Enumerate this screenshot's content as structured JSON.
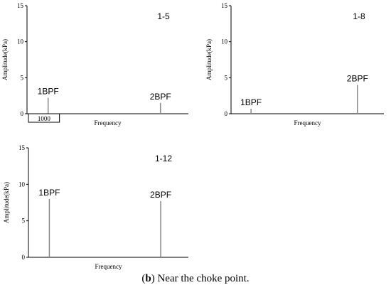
{
  "chart_data": [
    {
      "type": "spike",
      "panel_label": "1-5",
      "x_label": "Frequency",
      "y_label": "Amplitude(kPa)",
      "xlim": [
        0,
        5200
      ],
      "ylim": [
        0,
        15
      ],
      "yticks": [
        0,
        5,
        10,
        15
      ],
      "color": "#888888",
      "labels": [
        "1BPF",
        "2BPF"
      ],
      "x": [
        680,
        4300
      ],
      "values": [
        2.2,
        1.5
      ],
      "scale_bar": 1000
    },
    {
      "type": "spike",
      "panel_label": "1-8",
      "x_label": "Frequency",
      "y_label": "Amplitude(kPa)",
      "xlim": [
        0,
        5200
      ],
      "ylim": [
        0,
        15
      ],
      "yticks": [
        0,
        5,
        10,
        15
      ],
      "color": "#888888",
      "labels": [
        "1BPF",
        "2BPF"
      ],
      "x": [
        680,
        4300
      ],
      "values": [
        0.7,
        4.0
      ]
    },
    {
      "type": "spike",
      "panel_label": "1-12",
      "x_label": "Frequency",
      "y_label": "Amplitude(kPa)",
      "xlim": [
        0,
        5200
      ],
      "ylim": [
        0,
        15
      ],
      "yticks": [
        0,
        5,
        10,
        15
      ],
      "color": "#888888",
      "labels": [
        "1BPF",
        "2BPF"
      ],
      "x": [
        680,
        4300
      ],
      "values": [
        8.0,
        7.7
      ]
    }
  ],
  "caption": [
    "(",
    "b",
    ") Near the choke point."
  ]
}
